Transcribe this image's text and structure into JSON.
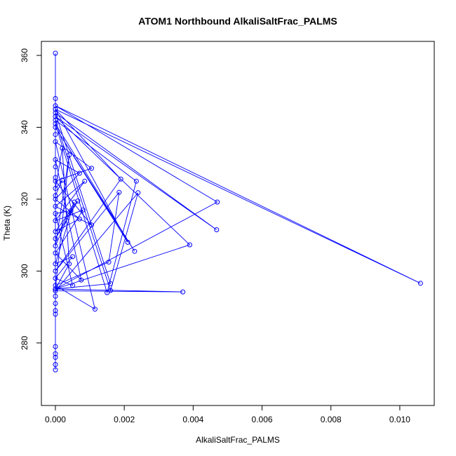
{
  "chart_data": {
    "type": "line",
    "title": "ATOM1 Northbound AlkaliSaltFrac_PALMS",
    "x_label": "AlkaliSaltFrac_PALMS",
    "y_label": "Theta (K)",
    "xlim": [
      -0.000407,
      0.011
    ],
    "ylim": [
      262.6,
      363.9
    ],
    "xticks": [
      {
        "value": 0,
        "label": "0.000"
      },
      {
        "value": 0.002,
        "label": "0.002"
      },
      {
        "value": 0.004,
        "label": "0.004"
      },
      {
        "value": 0.006,
        "label": "0.006"
      },
      {
        "value": 0.008,
        "label": "0.008"
      },
      {
        "value": 0.01,
        "label": "0.010"
      }
    ],
    "yticks": [
      280,
      300,
      320,
      340,
      360
    ],
    "series": [
      {
        "color": "#0000ff",
        "x": [
          0,
          0,
          0.0106,
          0,
          0.0047,
          0,
          0.0016,
          0,
          0.00468,
          0,
          0.0039,
          0,
          0.0037,
          0,
          0.0024,
          0.0016,
          0,
          0.00235,
          0.0015,
          0,
          0.0023,
          0,
          0.0021,
          0,
          0.0019,
          0,
          0.00185,
          0.00155,
          0,
          0.00115,
          0,
          0.00105,
          0,
          0.00105,
          0,
          0.00085,
          0,
          0.0008,
          0,
          0.00075,
          0,
          0.0007,
          0,
          0.0007,
          0,
          0.00065,
          0,
          0.00055,
          0,
          0.0005,
          0,
          0.0005,
          0,
          0.00045,
          0,
          0.0004,
          0,
          0.0004,
          0.0002,
          0,
          0.0002,
          0,
          0,
          0,
          0,
          0,
          0,
          0,
          0,
          0,
          0,
          0,
          0,
          0,
          0
        ],
        "values": [
          360.6,
          345,
          296.6,
          346,
          319.2,
          295,
          296.5,
          344,
          311.5,
          343,
          307.3,
          295,
          294.2,
          294.5,
          321.8,
          294.6,
          342,
          325,
          294,
          341,
          305.5,
          340,
          308,
          345,
          325.6,
          300,
          321.9,
          302.5,
          296,
          289.4,
          336,
          328.6,
          325,
          312.8,
          318,
          325,
          314,
          317,
          305,
          297.5,
          331,
          327.2,
          320,
          314.5,
          311,
          319.5,
          309,
          319.2,
          302,
          304,
          298,
          296,
          316,
          316.8,
          307,
          332.3,
          295,
          302,
          334.2,
          323,
          325.3,
          321,
          348,
          338,
          329,
          326,
          293,
          291,
          289,
          288,
          279,
          277,
          276,
          274,
          272.5
        ]
      }
    ]
  }
}
